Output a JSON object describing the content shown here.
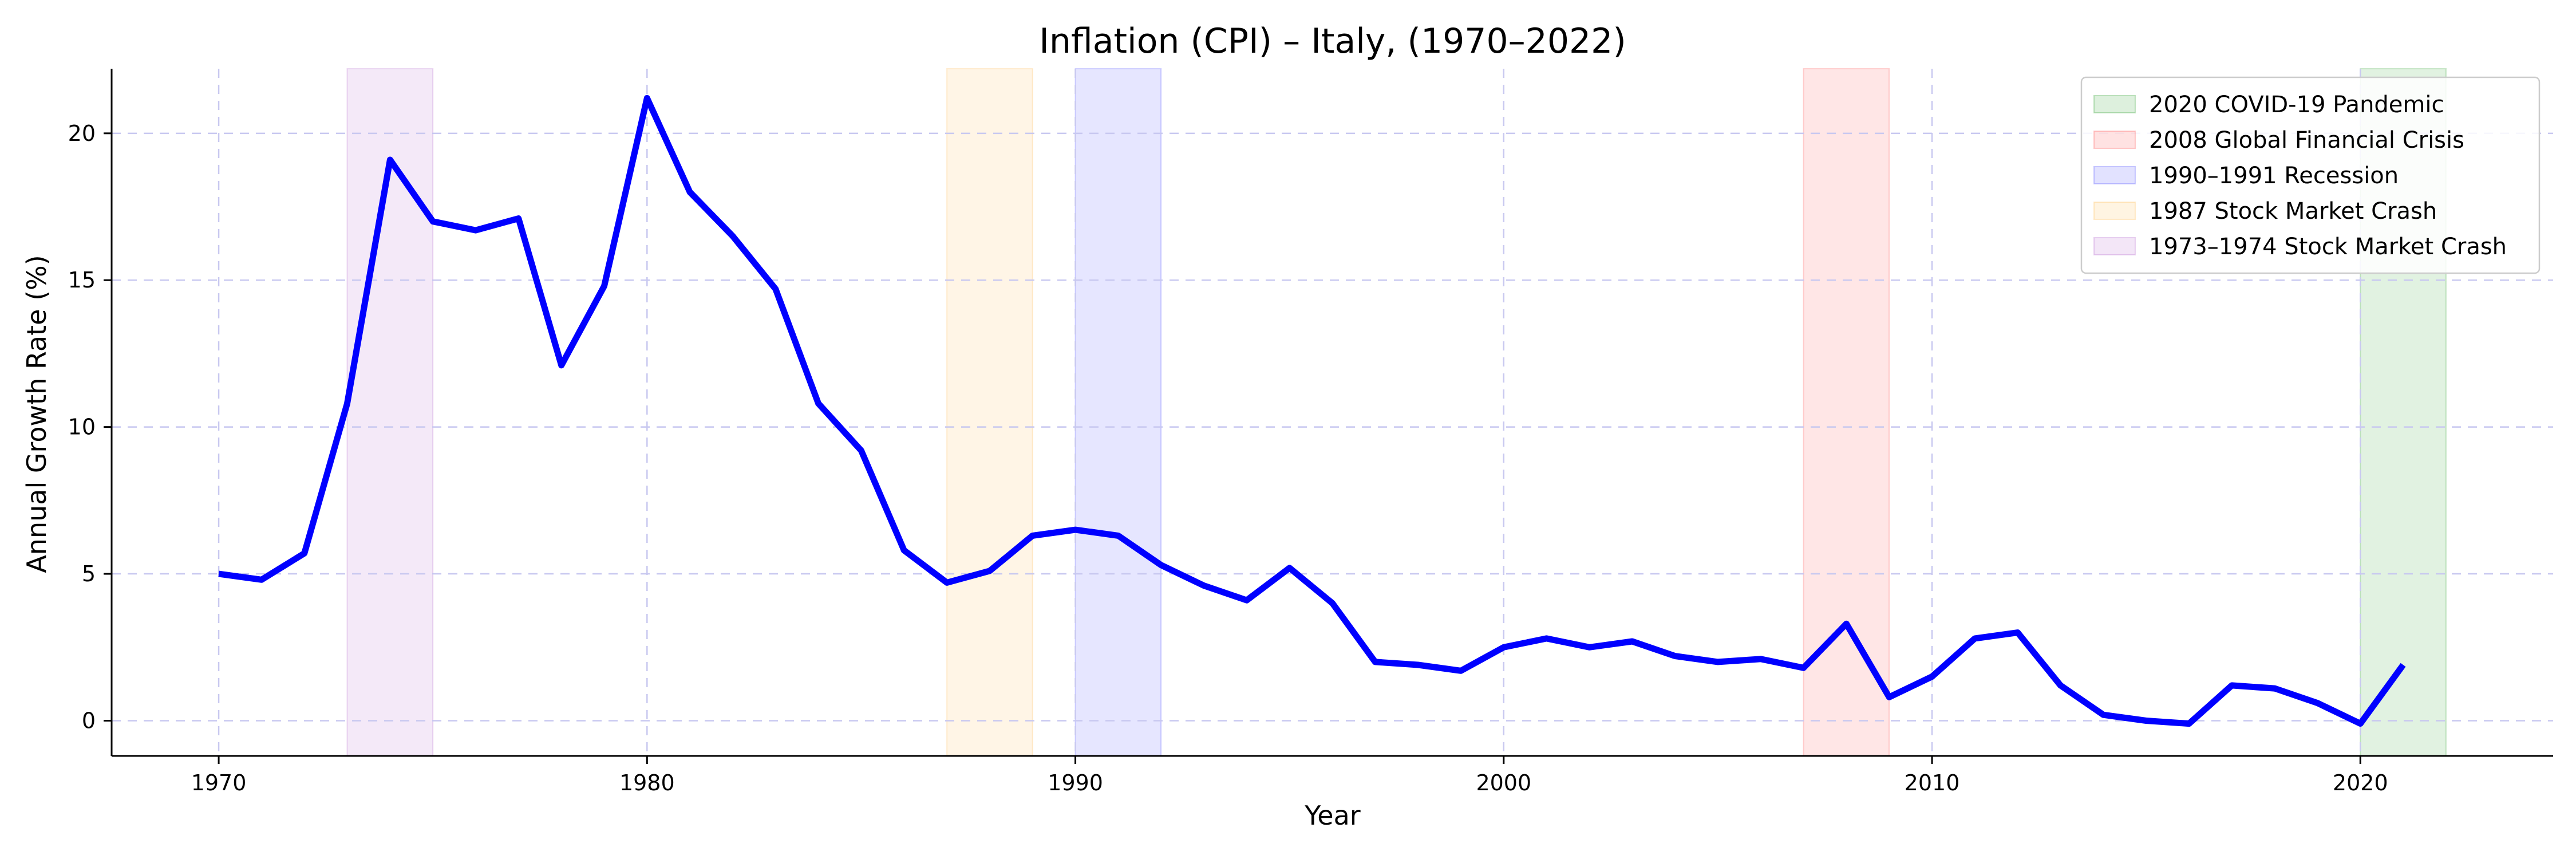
{
  "chart_data": {
    "type": "line",
    "title": "Inflation (CPI) – Italy, (1970–2022)",
    "xlabel": "Year",
    "ylabel": "Annual Growth Rate (%)",
    "xlim": [
      1967.5,
      2024.5
    ],
    "ylim": [
      -1.2,
      22.2
    ],
    "xticks": [
      1970,
      1980,
      1990,
      2000,
      2010,
      2020
    ],
    "yticks": [
      0,
      5,
      10,
      15,
      20
    ],
    "grid": true,
    "legend_position": "top-right",
    "series": [
      {
        "color": "#0000ff",
        "x": [
          1970,
          1971,
          1972,
          1973,
          1974,
          1975,
          1976,
          1977,
          1978,
          1979,
          1980,
          1981,
          1982,
          1983,
          1984,
          1985,
          1986,
          1987,
          1988,
          1989,
          1990,
          1991,
          1992,
          1993,
          1994,
          1995,
          1996,
          1997,
          1998,
          1999,
          2000,
          2001,
          2002,
          2003,
          2004,
          2005,
          2006,
          2007,
          2008,
          2009,
          2010,
          2011,
          2012,
          2013,
          2014,
          2015,
          2016,
          2017,
          2018,
          2019,
          2020,
          2021
        ],
        "values": [
          5.0,
          4.8,
          5.7,
          10.8,
          19.1,
          17.0,
          16.7,
          17.1,
          12.1,
          14.8,
          21.2,
          18.0,
          16.5,
          14.7,
          10.8,
          9.2,
          5.8,
          4.7,
          5.1,
          6.3,
          6.5,
          6.3,
          5.3,
          4.6,
          4.1,
          5.2,
          4.0,
          2.0,
          1.9,
          1.7,
          2.5,
          2.8,
          2.5,
          2.7,
          2.2,
          2.0,
          2.1,
          1.8,
          3.3,
          0.8,
          1.5,
          2.8,
          3.0,
          1.2,
          0.2,
          0.0,
          -0.1,
          1.2,
          1.1,
          0.6,
          -0.1,
          1.9
        ]
      }
    ],
    "shaded_periods": [
      {
        "label": "2020 COVID-19 Pandemic",
        "start": 2020,
        "end": 2022,
        "color": "#2ca02c"
      },
      {
        "label": "2008 Global Financial Crisis",
        "start": 2007,
        "end": 2009,
        "color": "#ff4d4d"
      },
      {
        "label": "1990–1991 Recession",
        "start": 1990,
        "end": 1992,
        "color": "#4d4dff"
      },
      {
        "label": "1987 Stock Market Crash",
        "start": 1987,
        "end": 1989,
        "color": "#ffb84d"
      },
      {
        "label": "1973–1974 Stock Market Crash",
        "start": 1973,
        "end": 1975,
        "color": "#b366cc"
      }
    ]
  }
}
